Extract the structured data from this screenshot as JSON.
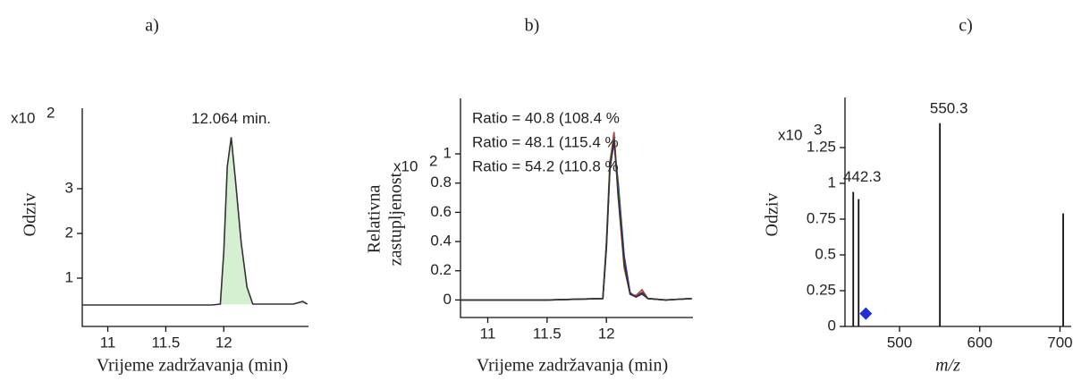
{
  "chart_data": [
    {
      "type": "line",
      "title": "a)",
      "xlabel": "Vrijeme  zadržavanja (min)",
      "ylabel": "Odziv",
      "y_scale_label": "x10",
      "y_scale_exponent": "2",
      "annotation": "12.064 min.",
      "annotation_x": 12.064,
      "x": [
        10.78,
        11.9,
        11.97,
        12.0,
        12.03,
        12.064,
        12.1,
        12.15,
        12.2,
        12.25,
        12.6,
        12.68,
        12.72
      ],
      "series": [
        {
          "color": "#333333",
          "fill": "#d4f0d0",
          "values": [
            0.4,
            0.4,
            0.42,
            1.6,
            3.5,
            4.15,
            3.2,
            1.8,
            0.8,
            0.42,
            0.42,
            0.48,
            0.42
          ]
        }
      ],
      "xlim": [
        10.78,
        12.73
      ],
      "xticks": [
        11,
        11.5,
        12
      ],
      "ylim": [
        -0.08,
        4.8
      ],
      "yticks": [
        1,
        2,
        3
      ]
    },
    {
      "type": "line",
      "title": "b)",
      "xlabel": "Vrijeme  zadržavanja (min)",
      "ylabel": [
        "Relativna",
        "zastupljenost"
      ],
      "y_scale_label": "x10",
      "y_scale_exponent": "2",
      "x": [
        10.77,
        11.5,
        11.97,
        12.0,
        12.03,
        12.064,
        12.1,
        12.15,
        12.2,
        12.25,
        12.3,
        12.35,
        12.5,
        12.72
      ],
      "series": [
        {
          "color": "#3030b0",
          "name": "Ratio = 40.8 (108.4 %",
          "values": [
            0,
            0,
            0.01,
            0.35,
            0.9,
            1.08,
            0.8,
            0.3,
            0.05,
            0.02,
            0.04,
            0.01,
            0,
            0.01
          ]
        },
        {
          "color": "#2f9a2f",
          "name": "Ratio = 48.1 (115.4 %",
          "values": [
            0,
            0,
            0.01,
            0.4,
            0.95,
            1.12,
            0.75,
            0.25,
            0.04,
            0.02,
            0.05,
            0.01,
            0,
            0.01
          ]
        },
        {
          "color": "#a84040",
          "name": "Ratio = 54.2 (110.8 %",
          "values": [
            0,
            0,
            0.01,
            0.38,
            0.92,
            1.15,
            0.7,
            0.22,
            0.04,
            0.03,
            0.07,
            0.01,
            0,
            0.01
          ]
        },
        {
          "color": "#333333",
          "values": [
            0,
            0,
            0.01,
            0.37,
            0.9,
            1.1,
            0.72,
            0.25,
            0.04,
            0.02,
            0.05,
            0.01,
            0,
            0.01
          ]
        }
      ],
      "xlim": [
        10.77,
        12.73
      ],
      "xticks": [
        11,
        11.5,
        12
      ],
      "ylim": [
        -0.12,
        1.38
      ],
      "yticks": [
        0,
        0.2,
        0.4,
        0.6,
        0.8,
        1
      ]
    },
    {
      "type": "stem",
      "title": "c)",
      "xlabel": "m/z",
      "ylabel": "Odziv",
      "y_scale_label": "x10",
      "y_scale_exponent": "3",
      "color": "#111111",
      "x": [
        442.3,
        449,
        550.3,
        704
      ],
      "values": [
        0.94,
        0.89,
        1.42,
        0.79
      ],
      "precursor": {
        "x": 458,
        "y": 0.09,
        "color": "#1f2fd0"
      },
      "xlim": [
        432,
        714
      ],
      "xticks": [
        500,
        600,
        700
      ],
      "ylim": [
        0,
        1.6
      ],
      "yticks": [
        0,
        0.25,
        0.5,
        0.75,
        1,
        1.25
      ]
    }
  ]
}
